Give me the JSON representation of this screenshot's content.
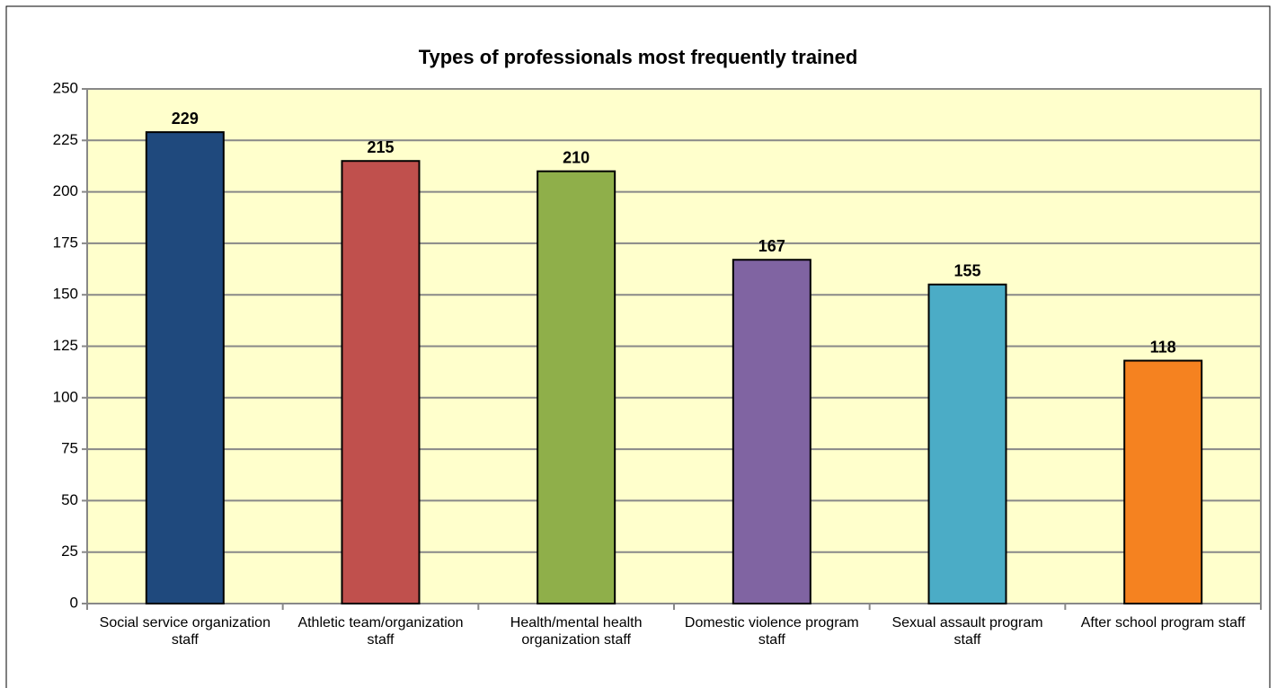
{
  "chart_data": {
    "type": "bar",
    "title": "Types of professionals most frequently trained",
    "categories": [
      "Social service organization staff",
      "Athletic team/organization staff",
      "Health/mental health organization staff",
      "Domestic violence program staff",
      "Sexual assault program staff",
      "After school program staff"
    ],
    "values": [
      229,
      215,
      210,
      167,
      155,
      118
    ],
    "colors": [
      "#1f497d",
      "#c0504d",
      "#8faf4a",
      "#8064a2",
      "#4bacc6",
      "#f58220"
    ],
    "ylim": [
      0,
      250
    ],
    "yticks": [
      0,
      25,
      50,
      75,
      100,
      125,
      150,
      175,
      200,
      225,
      250
    ],
    "grid": true
  }
}
